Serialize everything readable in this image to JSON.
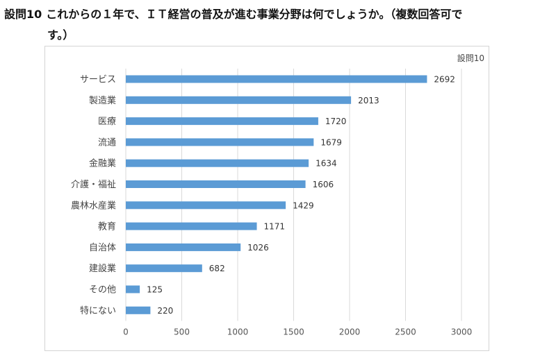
{
  "question": {
    "number": "設問10",
    "text_line1": "これからの１年で、ＩＴ経営の普及が進む事業分野は何でしょうか。（複数回答可で",
    "text_line2": "す。）"
  },
  "chart_data": {
    "type": "bar",
    "orientation": "horizontal",
    "series": [
      {
        "name": "設問10",
        "color": "#5B9BD5",
        "values": [
          2692,
          2013,
          1720,
          1679,
          1634,
          1606,
          1429,
          1171,
          1026,
          682,
          125,
          220
        ]
      }
    ],
    "categories": [
      "サービス",
      "製造業",
      "医療",
      "流通",
      "金融業",
      "介護・福祉",
      "農林水産業",
      "教育",
      "自治体",
      "建設業",
      "その他",
      "特にない"
    ],
    "xlim": [
      0,
      3000
    ],
    "xticks": [
      0,
      500,
      1000,
      1500,
      2000,
      2500,
      3000
    ],
    "grid": true,
    "legend_position": "top-right",
    "data_labels": true
  }
}
